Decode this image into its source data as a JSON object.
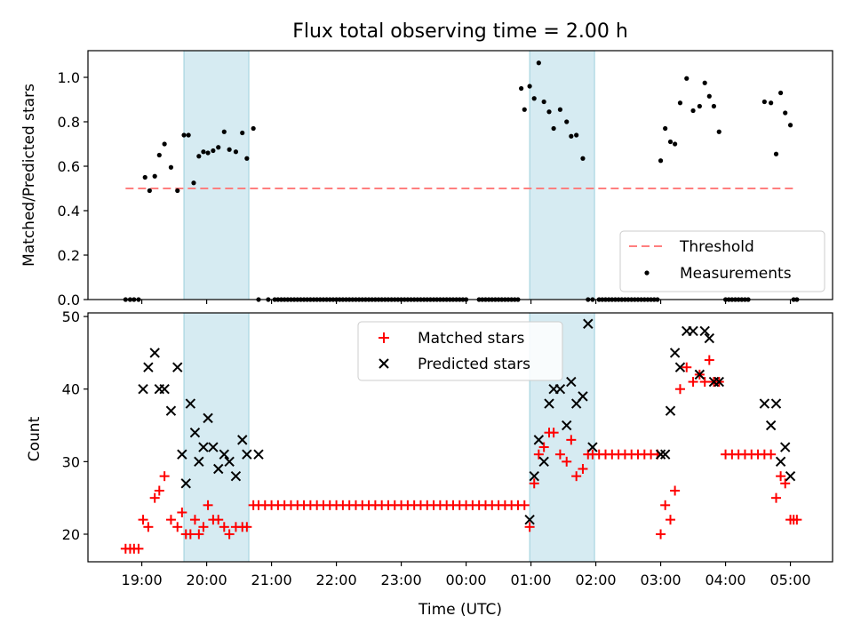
{
  "chart_data": [
    {
      "type": "scatter",
      "title": "Flux total observing time = 2.00 h",
      "ylabel": "Matched/Predicted stars",
      "xlabel": "",
      "ylim": [
        0,
        1.12
      ],
      "yticks": [
        "0.0",
        "0.2",
        "0.4",
        "0.6",
        "0.8",
        "1.0"
      ],
      "shaded_intervals_hours": [
        [
          19.65,
          20.65
        ],
        [
          24.98,
          25.98
        ]
      ],
      "threshold": {
        "name": "Threshold",
        "value": 0.5,
        "x_range_hours": [
          18.75,
          29.05
        ],
        "color": "#ff7f7f"
      },
      "legend": [
        "Threshold",
        "Measurements"
      ],
      "series": [
        {
          "name": "Measurements",
          "color": "#000000",
          "x_hours": [
            18.75,
            18.82,
            18.88,
            18.95,
            19.05,
            19.12,
            19.2,
            19.27,
            19.35,
            19.45,
            19.55,
            19.65,
            19.72,
            19.8,
            19.88,
            19.95,
            20.02,
            20.1,
            20.18,
            20.27,
            20.35,
            20.45,
            20.55,
            20.62,
            20.72,
            20.8,
            20.95,
            21.05,
            21.1,
            21.15,
            21.2,
            21.25,
            21.3,
            21.35,
            21.4,
            21.45,
            21.5,
            21.55,
            21.6,
            21.65,
            21.7,
            21.75,
            21.8,
            21.85,
            21.9,
            21.95,
            22.0,
            22.05,
            22.1,
            22.15,
            22.2,
            22.25,
            22.3,
            22.35,
            22.4,
            22.45,
            22.5,
            22.55,
            22.6,
            22.65,
            22.7,
            22.75,
            22.8,
            22.85,
            22.9,
            22.95,
            23.0,
            23.05,
            23.1,
            23.15,
            23.2,
            23.25,
            23.3,
            23.35,
            23.4,
            23.45,
            23.5,
            23.55,
            23.6,
            23.65,
            23.7,
            23.75,
            23.8,
            23.85,
            23.9,
            23.95,
            24.0,
            24.2,
            24.25,
            24.3,
            24.35,
            24.4,
            24.45,
            24.5,
            24.55,
            24.6,
            24.65,
            24.7,
            24.75,
            24.8,
            24.85,
            24.9,
            24.98,
            25.05,
            25.12,
            25.2,
            25.28,
            25.35,
            25.45,
            25.55,
            25.62,
            25.7,
            25.8,
            25.88,
            25.95,
            26.05,
            26.1,
            26.15,
            26.2,
            26.25,
            26.3,
            26.35,
            26.4,
            26.45,
            26.5,
            26.55,
            26.6,
            26.65,
            26.7,
            26.75,
            26.8,
            26.85,
            26.9,
            26.95,
            27.0,
            27.07,
            27.15,
            27.22,
            27.3,
            27.4,
            27.5,
            27.6,
            27.68,
            27.75,
            27.82,
            27.9,
            28.0,
            28.05,
            28.1,
            28.15,
            28.2,
            28.25,
            28.3,
            28.35,
            28.6,
            28.7,
            28.78,
            28.85,
            28.92,
            29.0,
            29.05,
            29.1
          ],
          "y": [
            0,
            0,
            0,
            0,
            0.55,
            0.49,
            0.555,
            0.65,
            0.7,
            0.595,
            0.49,
            0.74,
            0.74,
            0.525,
            0.645,
            0.665,
            0.66,
            0.67,
            0.685,
            0.755,
            0.675,
            0.665,
            0.75,
            0.635,
            0.77,
            0,
            0,
            0,
            0,
            0,
            0,
            0,
            0,
            0,
            0,
            0,
            0,
            0,
            0,
            0,
            0,
            0,
            0,
            0,
            0,
            0,
            0,
            0,
            0,
            0,
            0,
            0,
            0,
            0,
            0,
            0,
            0,
            0,
            0,
            0,
            0,
            0,
            0,
            0,
            0,
            0,
            0,
            0,
            0,
            0,
            0,
            0,
            0,
            0,
            0,
            0,
            0,
            0,
            0,
            0,
            0,
            0,
            0,
            0,
            0,
            0,
            0,
            0,
            0,
            0,
            0,
            0,
            0,
            0,
            0,
            0,
            0,
            0,
            0,
            0,
            0.95,
            0.855,
            0.96,
            0.905,
            1.065,
            0.89,
            0.845,
            0.77,
            0.855,
            0.8,
            0.735,
            0.74,
            0.635,
            0,
            0,
            0,
            0,
            0,
            0,
            0,
            0,
            0,
            0,
            0,
            0,
            0,
            0,
            0,
            0,
            0,
            0,
            0,
            0,
            0,
            0.625,
            0.77,
            0.71,
            0.7,
            0.885,
            0.995,
            0.85,
            0.87,
            0.975,
            0.915,
            0.87,
            0.755,
            0,
            0,
            0,
            0,
            0,
            0,
            0,
            0,
            0.89,
            0.885,
            0.655,
            0.93,
            0.84,
            0.785,
            0,
            0
          ]
        }
      ]
    },
    {
      "type": "scatter",
      "title": "",
      "ylabel": "Count",
      "xlabel": "Time (UTC)",
      "ylim": [
        16.2,
        50.5
      ],
      "yticks": [
        "20",
        "30",
        "40",
        "50"
      ],
      "xlim_hours": [
        18.17,
        29.65
      ],
      "xtick_labels": [
        "19:00",
        "20:00",
        "21:00",
        "22:00",
        "23:00",
        "00:00",
        "01:00",
        "02:00",
        "03:00",
        "04:00",
        "05:00"
      ],
      "shaded_intervals_hours": [
        [
          19.65,
          20.65
        ],
        [
          24.98,
          25.98
        ]
      ],
      "legend": [
        "Matched stars",
        "Predicted stars"
      ],
      "series": [
        {
          "name": "Matched stars",
          "marker": "+",
          "color": "#ff0000",
          "x_hours": [
            18.75,
            18.82,
            18.88,
            18.95,
            19.02,
            19.1,
            19.2,
            19.27,
            19.35,
            19.45,
            19.55,
            19.62,
            19.68,
            19.75,
            19.82,
            19.88,
            19.95,
            20.02,
            20.1,
            20.18,
            20.27,
            20.35,
            20.45,
            20.55,
            20.62,
            20.72,
            20.8,
            20.9,
            21.0,
            21.1,
            21.2,
            21.3,
            21.4,
            21.5,
            21.6,
            21.7,
            21.8,
            21.9,
            22.0,
            22.1,
            22.2,
            22.3,
            22.4,
            22.5,
            22.6,
            22.7,
            22.8,
            22.9,
            23.0,
            23.1,
            23.2,
            23.3,
            23.4,
            23.5,
            23.6,
            23.7,
            23.8,
            23.9,
            24.0,
            24.1,
            24.2,
            24.3,
            24.4,
            24.5,
            24.6,
            24.7,
            24.8,
            24.9,
            24.98,
            25.05,
            25.12,
            25.2,
            25.28,
            25.35,
            25.45,
            25.55,
            25.62,
            25.7,
            25.8,
            25.88,
            25.95,
            26.05,
            26.15,
            26.25,
            26.35,
            26.45,
            26.55,
            26.65,
            26.75,
            26.85,
            26.95,
            27.0,
            27.07,
            27.15,
            27.22,
            27.3,
            27.4,
            27.5,
            27.6,
            27.68,
            27.75,
            27.82,
            27.9,
            28.0,
            28.1,
            28.2,
            28.3,
            28.4,
            28.5,
            28.6,
            28.7,
            28.78,
            28.85,
            28.92,
            29.0,
            29.05,
            29.1
          ],
          "y": [
            18,
            18,
            18,
            18,
            22,
            21,
            25,
            26,
            28,
            22,
            21,
            23,
            20,
            20,
            22,
            20,
            21,
            24,
            22,
            22,
            21,
            20,
            21,
            21,
            21,
            24,
            24,
            24,
            24,
            24,
            24,
            24,
            24,
            24,
            24,
            24,
            24,
            24,
            24,
            24,
            24,
            24,
            24,
            24,
            24,
            24,
            24,
            24,
            24,
            24,
            24,
            24,
            24,
            24,
            24,
            24,
            24,
            24,
            24,
            24,
            24,
            24,
            24,
            24,
            24,
            24,
            24,
            24,
            21,
            27,
            31,
            32,
            34,
            34,
            31,
            30,
            33,
            28,
            29,
            31,
            31,
            31,
            31,
            31,
            31,
            31,
            31,
            31,
            31,
            31,
            31,
            20,
            24,
            22,
            26,
            40,
            43,
            41,
            42,
            41,
            44,
            41,
            41,
            31,
            31,
            31,
            31,
            31,
            31,
            31,
            31,
            25,
            28,
            27,
            22,
            22,
            22
          ]
        },
        {
          "name": "Predicted stars",
          "marker": "x",
          "color": "#000000",
          "x_hours": [
            19.02,
            19.1,
            19.2,
            19.27,
            19.35,
            19.45,
            19.55,
            19.62,
            19.68,
            19.75,
            19.82,
            19.88,
            19.95,
            20.02,
            20.1,
            20.18,
            20.27,
            20.35,
            20.45,
            20.55,
            20.62,
            20.8,
            24.98,
            25.05,
            25.12,
            25.2,
            25.28,
            25.35,
            25.45,
            25.55,
            25.62,
            25.7,
            25.8,
            25.88,
            25.95,
            27.0,
            27.07,
            27.15,
            27.22,
            27.3,
            27.4,
            27.5,
            27.6,
            27.68,
            27.75,
            27.82,
            27.9,
            28.6,
            28.7,
            28.78,
            28.85,
            28.92,
            29.0
          ],
          "y": [
            40,
            43,
            45,
            40,
            40,
            37,
            43,
            31,
            27,
            38,
            34,
            30,
            32,
            36,
            32,
            29,
            31,
            30,
            28,
            33,
            31,
            31,
            22,
            28,
            33,
            30,
            38,
            40,
            40,
            35,
            41,
            38,
            39,
            49,
            32,
            31,
            31,
            37,
            45,
            43,
            48,
            48,
            42,
            48,
            47,
            41,
            41,
            38,
            35,
            38,
            30,
            32,
            28
          ]
        }
      ]
    }
  ]
}
